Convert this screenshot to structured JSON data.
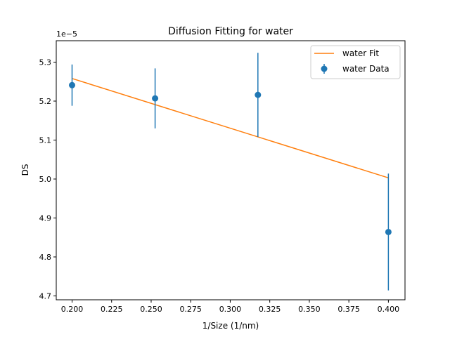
{
  "chart_data": {
    "type": "scatter",
    "title": "Diffusion Fitting for water",
    "xlabel": "1/Size (1/nm)",
    "ylabel": "DS",
    "y_offset_label": "1e−5",
    "xlim": [
      0.19,
      0.4105
    ],
    "ylim": [
      4.69,
      5.355
    ],
    "x_ticks": [
      0.2,
      0.225,
      0.25,
      0.275,
      0.3,
      0.325,
      0.35,
      0.375,
      0.4
    ],
    "x_tick_labels": [
      "0.200",
      "0.225",
      "0.250",
      "0.275",
      "0.300",
      "0.325",
      "0.350",
      "0.375",
      "0.400"
    ],
    "y_ticks": [
      4.7,
      4.8,
      4.9,
      5.0,
      5.1,
      5.2,
      5.3
    ],
    "y_tick_labels": [
      "4.7",
      "4.8",
      "4.9",
      "5.0",
      "5.1",
      "5.2",
      "5.3"
    ],
    "grid": false,
    "legend_position": "top-right",
    "series": [
      {
        "name": "water Fit",
        "kind": "line",
        "color": "#ff7f0e",
        "x": [
          0.2,
          0.4
        ],
        "y": [
          5.258,
          5.003
        ]
      },
      {
        "name": "water Data",
        "kind": "errorbar",
        "color": "#1f77b4",
        "x": [
          0.2,
          0.2525,
          0.3175,
          0.4
        ],
        "y": [
          5.241,
          5.207,
          5.216,
          4.864
        ],
        "yerr": [
          0.053,
          0.077,
          0.108,
          0.15
        ]
      }
    ]
  }
}
